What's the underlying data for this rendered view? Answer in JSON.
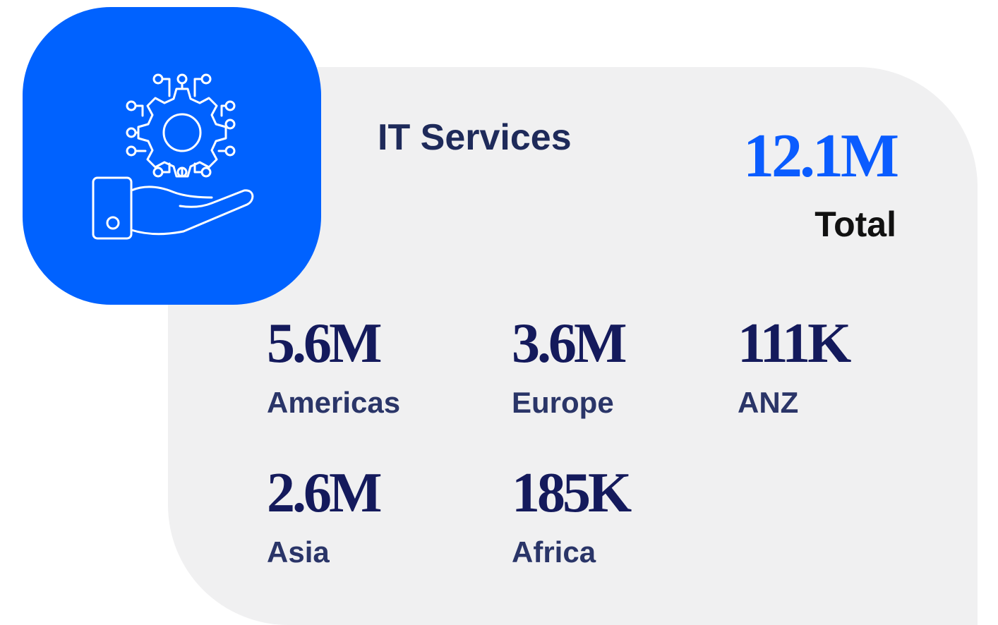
{
  "title": "IT Services",
  "total": {
    "value": "12.1M",
    "label": "Total"
  },
  "regions": [
    {
      "value": "5.6M",
      "name": "Americas"
    },
    {
      "value": "3.6M",
      "name": "Europe"
    },
    {
      "value": "111K",
      "name": "ANZ"
    },
    {
      "value": "2.6M",
      "name": "Asia"
    },
    {
      "value": "185K",
      "name": "Africa"
    }
  ]
}
